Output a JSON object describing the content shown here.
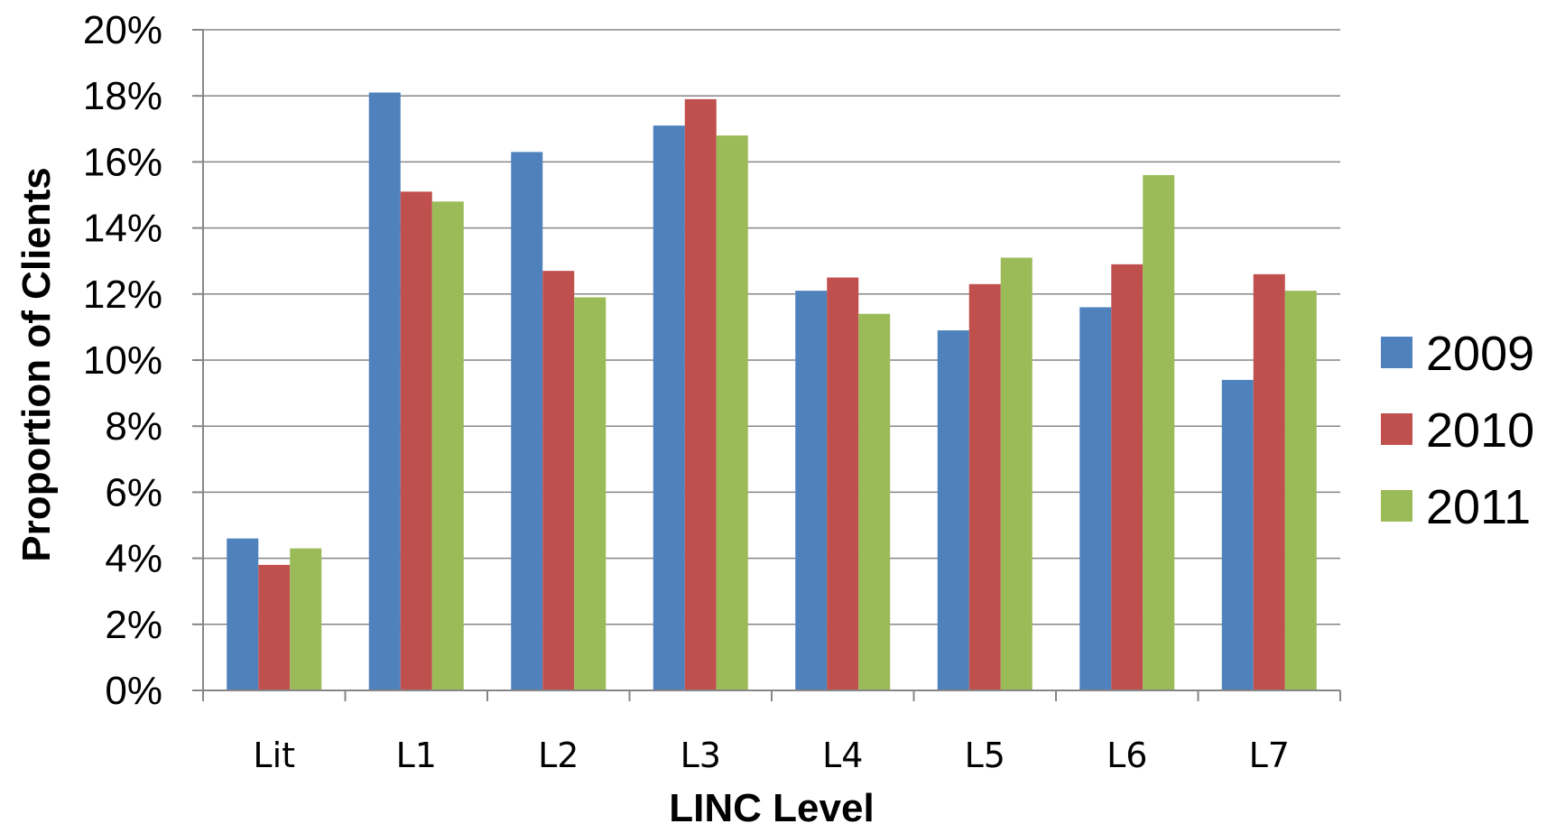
{
  "chart_data": {
    "type": "bar",
    "title": "",
    "xlabel": "LINC Level",
    "ylabel": "Proportion of Clients",
    "categories": [
      "Lit",
      "L1",
      "L2",
      "L3",
      "L4",
      "L5",
      "L6",
      "L7"
    ],
    "series": [
      {
        "name": "2009",
        "color": "#4F81BD",
        "values": [
          4.6,
          18.1,
          16.3,
          17.1,
          12.1,
          10.9,
          11.6,
          9.4
        ]
      },
      {
        "name": "2010",
        "color": "#C0504D",
        "values": [
          3.8,
          15.1,
          12.7,
          17.9,
          12.5,
          12.3,
          12.9,
          12.6
        ]
      },
      {
        "name": "2011",
        "color": "#9BBB59",
        "values": [
          4.3,
          14.8,
          11.9,
          16.8,
          11.4,
          13.1,
          15.6,
          12.1
        ]
      }
    ],
    "ylim": [
      0,
      20
    ],
    "yticks": [
      "0%",
      "2%",
      "4%",
      "6%",
      "8%",
      "10%",
      "12%",
      "14%",
      "16%",
      "18%",
      "20%"
    ],
    "grid": true,
    "legend_position": "right"
  }
}
